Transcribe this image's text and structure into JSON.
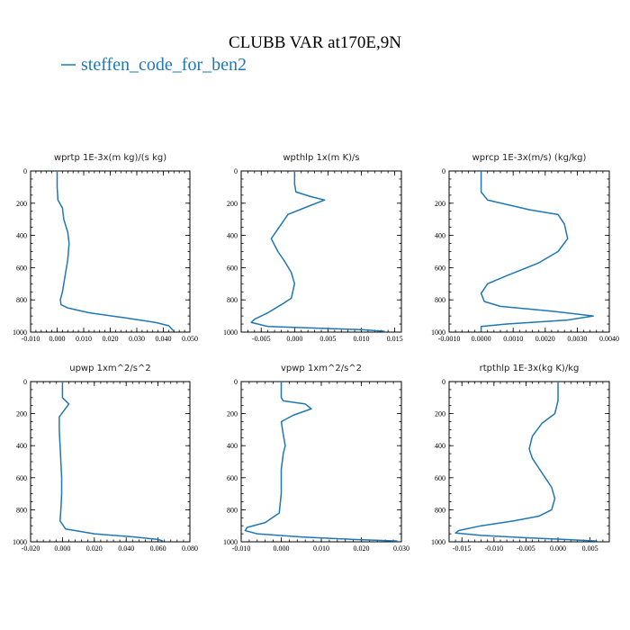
{
  "figure": {
    "title": "CLUBB VAR at170E,9N",
    "legend": [
      {
        "label": "steffen_code_for_ben2",
        "color": "#1f77b4"
      }
    ]
  },
  "chart_data": [
    {
      "type": "line",
      "title": "wprtp  1E-3x(m kg)/(s kg)",
      "xlim": [
        -0.01,
        0.05
      ],
      "ylim": [
        1000,
        0
      ],
      "xticks": [
        "-0.010",
        "0.000",
        "0.010",
        "0.020",
        "0.030",
        "0.040",
        "0.050"
      ],
      "yticks": [
        "0",
        "200",
        "400",
        "600",
        "800",
        "1000"
      ],
      "series": [
        {
          "name": "steffen_code_for_ben2",
          "color": "#1f77b4",
          "x": [
            0.0,
            0.0,
            0.0003,
            0.002,
            0.0025,
            0.004,
            0.0045,
            0.004,
            0.003,
            0.002,
            0.0012,
            0.0015,
            0.004,
            0.012,
            0.025,
            0.037,
            0.042,
            0.044
          ],
          "y": [
            0,
            100,
            180,
            230,
            300,
            380,
            450,
            550,
            650,
            750,
            800,
            830,
            850,
            880,
            910,
            940,
            960,
            995
          ]
        }
      ]
    },
    {
      "type": "line",
      "title": "wpthlp  1x(m K)/s",
      "xlim": [
        -0.008,
        0.016
      ],
      "ylim": [
        1000,
        0
      ],
      "xticks": [
        "-0.005",
        "0.000",
        "0.005",
        "0.010",
        "0.015"
      ],
      "yticks": [
        "0",
        "200",
        "400",
        "600",
        "800",
        "1000"
      ],
      "series": [
        {
          "name": "steffen_code_for_ben2",
          "color": "#1f77b4",
          "x": [
            0.0,
            0.0,
            0.0002,
            0.0025,
            0.0045,
            0.002,
            -0.001,
            -0.002,
            -0.0035,
            -0.0025,
            -0.0015,
            -0.0005,
            0.0,
            -0.0005,
            -0.002,
            -0.004,
            -0.006,
            -0.0065,
            -0.004,
            0.01,
            0.0135
          ],
          "y": [
            0,
            80,
            130,
            160,
            180,
            220,
            270,
            330,
            420,
            500,
            560,
            630,
            700,
            790,
            830,
            880,
            920,
            940,
            965,
            985,
            995
          ]
        }
      ]
    },
    {
      "type": "line",
      "title": "wprcp  1E-3x(m/s) (kg/kg)",
      "xlim": [
        -0.001,
        0.004
      ],
      "ylim": [
        1000,
        0
      ],
      "xticks": [
        "-0.0010",
        "0.0000",
        "0.0010",
        "0.0020",
        "0.0030",
        "0.0040"
      ],
      "yticks": [
        "0",
        "200",
        "400",
        "600",
        "800",
        "1000"
      ],
      "series": [
        {
          "name": "steffen_code_for_ben2",
          "color": "#1f77b4",
          "x": [
            0.0,
            0.0,
            0.0002,
            0.0015,
            0.0024,
            0.0026,
            0.0027,
            0.0024,
            0.0018,
            0.0008,
            0.0002,
            0.0,
            0.0001,
            0.0006,
            0.0022,
            0.0035,
            0.0027,
            0.0008,
            0.0,
            0.0
          ],
          "y": [
            0,
            130,
            180,
            240,
            270,
            330,
            420,
            500,
            570,
            650,
            700,
            760,
            810,
            840,
            870,
            900,
            925,
            950,
            965,
            995
          ]
        }
      ]
    },
    {
      "type": "line",
      "title": "upwp  1xm^2/s^2",
      "xlim": [
        -0.02,
        0.08
      ],
      "ylim": [
        1000,
        0
      ],
      "xticks": [
        "-0.020",
        "0.000",
        "0.020",
        "0.040",
        "0.060",
        "0.080"
      ],
      "yticks": [
        "0",
        "200",
        "400",
        "600",
        "800",
        "1000"
      ],
      "series": [
        {
          "name": "steffen_code_for_ben2",
          "color": "#1f77b4",
          "x": [
            0.0,
            0.0,
            0.004,
            0.001,
            -0.002,
            -0.002,
            -0.0015,
            -0.001,
            -0.0005,
            -0.0005,
            -0.001,
            -0.0015,
            0.002,
            0.02,
            0.045,
            0.06,
            0.063
          ],
          "y": [
            0,
            100,
            140,
            180,
            220,
            300,
            400,
            500,
            600,
            700,
            800,
            870,
            920,
            950,
            970,
            985,
            995
          ]
        }
      ]
    },
    {
      "type": "line",
      "title": "vpwp  1xm^2/s^2",
      "xlim": [
        -0.01,
        0.03
      ],
      "ylim": [
        1000,
        0
      ],
      "xticks": [
        "-0.010",
        "0.000",
        "0.010",
        "0.020",
        "0.030"
      ],
      "yticks": [
        "0",
        "200",
        "400",
        "600",
        "800",
        "1000"
      ],
      "series": [
        {
          "name": "steffen_code_for_ben2",
          "color": "#1f77b4",
          "x": [
            0.0,
            0.0,
            0.0005,
            0.006,
            0.0075,
            0.003,
            0.0,
            0.0005,
            0.001,
            0.0005,
            0.0,
            0.0,
            -0.0005,
            -0.004,
            -0.0085,
            -0.009,
            -0.006,
            0.005,
            0.018,
            0.029
          ],
          "y": [
            0,
            100,
            120,
            140,
            170,
            210,
            250,
            330,
            400,
            450,
            550,
            700,
            820,
            880,
            910,
            930,
            950,
            970,
            985,
            995
          ]
        }
      ]
    },
    {
      "type": "line",
      "title": "rtpthlp  1E-3x(kg K)/kg",
      "xlim": [
        -0.017,
        0.008
      ],
      "ylim": [
        1000,
        0
      ],
      "xticks": [
        "-0.015",
        "-0.010",
        "-0.005",
        "0.000",
        "0.005"
      ],
      "yticks": [
        "0",
        "200",
        "400",
        "600",
        "800",
        "1000"
      ],
      "series": [
        {
          "name": "steffen_code_for_ben2",
          "color": "#1f77b4",
          "x": [
            0.0,
            0.0,
            -0.0005,
            -0.0025,
            -0.004,
            -0.0045,
            -0.004,
            -0.003,
            -0.002,
            -0.001,
            -0.0005,
            -0.001,
            -0.003,
            -0.007,
            -0.012,
            -0.0155,
            -0.016,
            -0.012,
            -0.005,
            0.001,
            0.006
          ],
          "y": [
            0,
            120,
            200,
            260,
            340,
            420,
            480,
            540,
            600,
            660,
            730,
            800,
            840,
            870,
            900,
            930,
            945,
            960,
            975,
            985,
            995
          ]
        }
      ]
    }
  ]
}
